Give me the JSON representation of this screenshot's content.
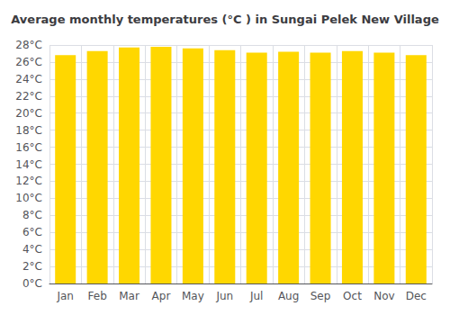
{
  "chart_data": {
    "type": "bar",
    "title": "Average monthly temperatures (°C ) in Sungai Pelek New Village",
    "categories": [
      "Jan",
      "Feb",
      "Mar",
      "Apr",
      "May",
      "Jun",
      "Jul",
      "Aug",
      "Sep",
      "Oct",
      "Nov",
      "Dec"
    ],
    "values": [
      26.8,
      27.3,
      27.7,
      27.8,
      27.6,
      27.4,
      27.1,
      27.2,
      27.1,
      27.3,
      27.1,
      26.8
    ],
    "color": "#FFD700",
    "ylim": [
      0,
      28
    ],
    "yticks": [
      {
        "value": 0,
        "label": "0°C"
      },
      {
        "value": 2,
        "label": "2°C"
      },
      {
        "value": 4,
        "label": "4°C"
      },
      {
        "value": 6,
        "label": "6°C"
      },
      {
        "value": 8,
        "label": "8°C"
      },
      {
        "value": 10,
        "label": "10°C"
      },
      {
        "value": 12,
        "label": "12°C"
      },
      {
        "value": 14,
        "label": "14°C"
      },
      {
        "value": 16,
        "label": "16°C"
      },
      {
        "value": 18,
        "label": "18°C"
      },
      {
        "value": 20,
        "label": "20°C"
      },
      {
        "value": 22,
        "label": "22°C"
      },
      {
        "value": 24,
        "label": "24°C"
      },
      {
        "value": 26,
        "label": "26°C"
      },
      {
        "value": 28,
        "label": "28°C"
      }
    ],
    "grid": true
  }
}
